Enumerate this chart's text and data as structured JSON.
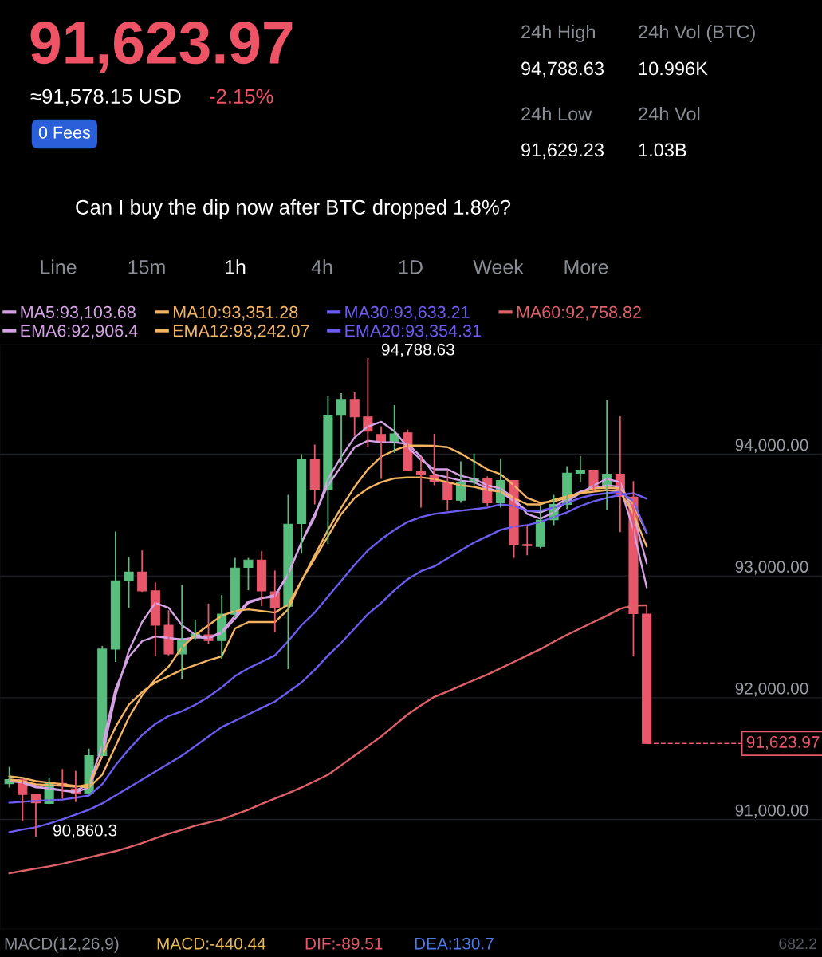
{
  "chart_data": {
    "type": "candlestick",
    "title": "91,623.97",
    "subtitle": "≈91,578.15 USD",
    "categories": [
      null,
      null,
      null,
      null,
      null,
      null,
      null,
      null,
      null,
      null,
      null,
      null,
      null,
      null,
      null,
      null,
      null,
      null,
      null,
      null,
      null,
      null,
      null,
      null,
      null,
      null,
      null,
      null,
      null,
      null,
      null,
      null,
      null,
      null,
      null,
      null,
      null,
      null,
      null,
      null,
      null,
      null,
      null,
      null,
      null,
      null,
      null,
      null,
      null
    ],
    "ohlc": [
      [
        91294,
        91432,
        91263,
        91328
      ],
      [
        91328,
        91341,
        90988,
        91205
      ],
      [
        91203,
        91203,
        90860.3,
        91137
      ],
      [
        91132,
        91346,
        91127,
        91294
      ],
      [
        91297,
        91414,
        91171,
        91276
      ],
      [
        91250,
        91398,
        91145,
        91216
      ],
      [
        91211,
        91581,
        91205,
        91524
      ],
      [
        91524,
        92425,
        91519,
        92399
      ],
      [
        92399,
        93365,
        92294,
        92960
      ],
      [
        92960,
        93156,
        92738,
        93031
      ],
      [
        93031,
        93209,
        92869,
        92877
      ],
      [
        92877,
        92947,
        92339,
        92595
      ],
      [
        92595,
        92717,
        92347,
        92360
      ],
      [
        92360,
        92926,
        92156,
        92485
      ],
      [
        92495,
        92639,
        92477,
        92522
      ],
      [
        92516,
        92772,
        92443,
        92469
      ],
      [
        92469,
        92843,
        92320,
        92686
      ],
      [
        92686,
        93148,
        92660,
        93065
      ],
      [
        93070,
        93148,
        92882,
        93130
      ],
      [
        93130,
        93203,
        92751,
        92877
      ],
      [
        92869,
        93044,
        92537,
        92738
      ],
      [
        92751,
        93666,
        92234,
        93425
      ],
      [
        93431,
        94000,
        93182,
        93953
      ],
      [
        93953,
        94078,
        93587,
        93705
      ],
      [
        93705,
        94475,
        93261,
        94313
      ],
      [
        94319,
        94501,
        93922,
        94449
      ],
      [
        94449,
        94507,
        94149,
        94306
      ],
      [
        94306,
        94788.63,
        94057,
        94188
      ],
      [
        94162,
        94227,
        93796,
        94097
      ],
      [
        94097,
        94402,
        94010,
        94167
      ],
      [
        94175,
        94201,
        93862,
        93862
      ],
      [
        93862,
        93979,
        93561,
        93835
      ],
      [
        93828,
        94167,
        93744,
        93770
      ],
      [
        93770,
        93869,
        93535,
        93626
      ],
      [
        93621,
        93940,
        93600,
        93770
      ],
      [
        93770,
        94005,
        93744,
        93796
      ],
      [
        93801,
        93817,
        93574,
        93600
      ],
      [
        93600,
        93966,
        93561,
        93783
      ],
      [
        93783,
        93783,
        93148,
        93255
      ],
      [
        93258,
        93417,
        93169,
        93248
      ],
      [
        93242,
        93574,
        93227,
        93457
      ],
      [
        93462,
        93666,
        93417,
        93587
      ],
      [
        93587,
        93901,
        93548,
        93843
      ],
      [
        93843,
        93984,
        93770,
        93869
      ],
      [
        93869,
        93869,
        93692,
        93718
      ],
      [
        93718,
        94444,
        93540,
        93835
      ],
      [
        93835,
        94311,
        93360,
        93653
      ],
      [
        93647,
        93778,
        92339,
        92691
      ],
      [
        92686,
        92764,
        91623.97,
        91623.97
      ]
    ],
    "colors": [
      "#58bd7d",
      "#e9576a",
      "#e9576a",
      "#58bd7d",
      "#e9576a",
      "#e9576a",
      "#58bd7d",
      "#58bd7d",
      "#58bd7d",
      "#58bd7d",
      "#e9576a",
      "#e9576a",
      "#e9576a",
      "#58bd7d",
      "#58bd7d",
      "#e9576a",
      "#58bd7d",
      "#58bd7d",
      "#58bd7d",
      "#e9576a",
      "#e9576a",
      "#58bd7d",
      "#58bd7d",
      "#e9576a",
      "#58bd7d",
      "#58bd7d",
      "#e9576a",
      "#e9576a",
      "#e9576a",
      "#58bd7d",
      "#e9576a",
      "#e9576a",
      "#e9576a",
      "#e9576a",
      "#58bd7d",
      "#58bd7d",
      "#e9576a",
      "#58bd7d",
      "#e9576a",
      "#e9576a",
      "#58bd7d",
      "#58bd7d",
      "#58bd7d",
      "#58bd7d",
      "#e9576a",
      "#58bd7d",
      "#e9576a",
      "#e9576a",
      "#e9576a"
    ],
    "series": [
      {
        "name": "MA5:93,103.68",
        "type": "line",
        "color": "#d6a2e6",
        "values": [
          91328,
          91315,
          91276,
          91250,
          91237,
          91223,
          91263,
          91524,
          92020,
          92386,
          92621,
          92778,
          92738,
          92595,
          92516,
          92490,
          92542,
          92673,
          92791,
          92817,
          92830,
          93013,
          93274,
          93483,
          93796,
          93979,
          94136,
          94227,
          94266,
          94188,
          94057,
          93953,
          93875,
          93875,
          93822,
          93796,
          93744,
          93718,
          93640,
          93509,
          93470,
          93522,
          93613,
          93679,
          93744,
          93796,
          93770,
          93509,
          93103.68
        ]
      },
      {
        "name": "EMA6:92,906.4",
        "type": "line",
        "color": "#d6a2e6",
        "values": [
          91315,
          91302,
          91263,
          91257,
          91242,
          91237,
          91289,
          91602,
          92072,
          92334,
          92464,
          92503,
          92490,
          92477,
          92495,
          92490,
          92529,
          92647,
          92778,
          92817,
          92843,
          93013,
          93274,
          93509,
          93744,
          93901,
          94057,
          94110,
          94097,
          94097,
          94084,
          93979,
          93835,
          93809,
          93783,
          93770,
          93718,
          93692,
          93613,
          93535,
          93522,
          93561,
          93640,
          93692,
          93718,
          93744,
          93731,
          93378,
          92906.4
        ]
      },
      {
        "name": "MA10:93,351.28",
        "type": "line",
        "color": "#f5b462",
        "values": [
          91354,
          91341,
          91315,
          91302,
          91289,
          91276,
          91263,
          91367,
          91602,
          91837,
          92020,
          92151,
          92255,
          92412,
          92516,
          92595,
          92673,
          92712,
          92725,
          92712,
          92699,
          92764,
          92960,
          93169,
          93378,
          93561,
          93731,
          93875,
          93979,
          94031,
          94070,
          94070,
          94068,
          94057,
          94005,
          93940,
          93875,
          93835,
          93744,
          93640,
          93600,
          93613,
          93640,
          93679,
          93718,
          93723,
          93718,
          93587,
          93351.28
        ]
      },
      {
        "name": "EMA12:93,242.07",
        "type": "line",
        "color": "#f5b462",
        "values": [
          91328,
          91315,
          91289,
          91283,
          91276,
          91268,
          91289,
          91524,
          91759,
          91942,
          92046,
          92125,
          92177,
          92229,
          92268,
          92307,
          92339,
          92569,
          92621,
          92621,
          92621,
          92725,
          92960,
          93143,
          93326,
          93509,
          93640,
          93718,
          93770,
          93801,
          93809,
          93809,
          93796,
          93770,
          93744,
          93731,
          93705,
          93692,
          93640,
          93587,
          93587,
          93626,
          93653,
          93679,
          93692,
          93705,
          93692,
          93509,
          93242.07
        ]
      },
      {
        "name": "MA30:93,633.21",
        "type": "line",
        "color": "#6c5cf2",
        "values": [
          90897,
          90918,
          90936,
          90967,
          91001,
          91041,
          91080,
          91132,
          91197,
          91263,
          91328,
          91393,
          91459,
          91524,
          91602,
          91681,
          91759,
          91811,
          91863,
          91916,
          91968,
          92046,
          92125,
          92229,
          92347,
          92451,
          92569,
          92686,
          92778,
          92882,
          92973,
          93039,
          93078,
          93143,
          93209,
          93274,
          93326,
          93378,
          93404,
          93417,
          93444,
          93483,
          93522,
          93574,
          93613,
          93640,
          93666,
          93679,
          93633.21
        ]
      },
      {
        "name": "EMA20:93,354.31",
        "type": "line",
        "color": "#6c5cf2",
        "values": [
          91137,
          91145,
          91153,
          91158,
          91163,
          91179,
          91197,
          91289,
          91445,
          91576,
          91693,
          91785,
          91850,
          91889,
          91942,
          92007,
          92085,
          92177,
          92242,
          92294,
          92347,
          92464,
          92595,
          92699,
          92830,
          92960,
          93091,
          93209,
          93300,
          93378,
          93444,
          93483,
          93509,
          93522,
          93535,
          93548,
          93561,
          93587,
          93574,
          93535,
          93535,
          93561,
          93600,
          93640,
          93666,
          93679,
          93692,
          93613,
          93354.31
        ]
      },
      {
        "name": "MA60:92,758.82",
        "type": "line",
        "color": "#e0606a",
        "values": [
          90557,
          90578,
          90597,
          90615,
          90636,
          90662,
          90688,
          90714,
          90740,
          90772,
          90806,
          90845,
          90884,
          90915,
          90949,
          90975,
          91001,
          91041,
          91080,
          91127,
          91171,
          91216,
          91263,
          91315,
          91367,
          91445,
          91524,
          91602,
          91681,
          91772,
          91863,
          91937,
          92007,
          92051,
          92098,
          92145,
          92190,
          92242,
          92294,
          92347,
          92399,
          92459,
          92516,
          92569,
          92621,
          92673,
          92730,
          92757,
          92758.82
        ]
      }
    ],
    "ylim": [
      90100,
      94900
    ],
    "yticks": [
      {
        "value": 91000,
        "label": "91,000.00"
      },
      {
        "value": 92000,
        "label": "92,000.00"
      },
      {
        "value": 93000,
        "label": "93,000.00"
      },
      {
        "value": 94000,
        "label": "94,000.00"
      }
    ],
    "ref_lines": [
      {
        "axis": "y",
        "value": 91623.97,
        "label": "91,623.97",
        "color": "#e9576a",
        "line_style": "dashed"
      }
    ],
    "grid": "y",
    "legend": "top left",
    "tick_labels": "y",
    "annotations": [
      "-2.15%",
      "0 Fees",
      "24h High",
      "24h Vol (BTC)",
      "94,788.63",
      "10.996K",
      "24h Low",
      "24h Vol",
      "91,629.23",
      "1.03B",
      "Can I buy the dip now after BTC dropped 1.8%?",
      "Line",
      "15m",
      "1h",
      "4h",
      "1D",
      "Week",
      "More",
      "MACD(12,26,9)",
      "MACD:-440.44",
      "DIF:-89.51",
      "DEA:130.7",
      "682.2",
      "94,788.63",
      "90,860.3"
    ]
  }
}
